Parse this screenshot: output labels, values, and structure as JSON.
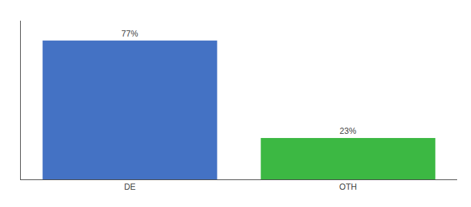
{
  "chart_data": {
    "type": "bar",
    "categories": [
      "DE",
      "OTH"
    ],
    "values": [
      77,
      23
    ],
    "value_labels": [
      "77%",
      "23%"
    ],
    "colors": [
      "#4472c4",
      "#3cb843"
    ],
    "ylim": [
      0,
      88
    ],
    "data_labels": true,
    "tick_labels": "x",
    "grid": false
  }
}
